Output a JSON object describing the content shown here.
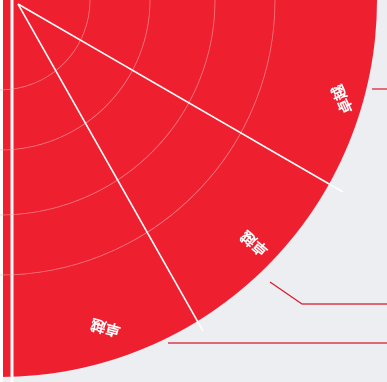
{
  "diagram": {
    "labels": [
      "卓越",
      "卓越",
      "卓越"
    ],
    "colors": {
      "segment_fill": "#ee1f2f",
      "divider": "#ffffff",
      "ring": "#f7a3a8",
      "callout_line": "#d8192a",
      "background": "#eceef1"
    }
  }
}
